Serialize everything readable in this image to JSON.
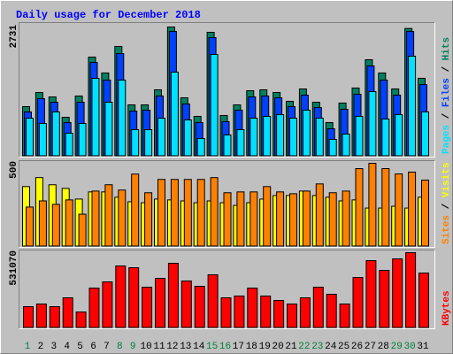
{
  "title": "Daily usage for December 2018",
  "days": [
    "1",
    "2",
    "3",
    "4",
    "5",
    "6",
    "7",
    "8",
    "9",
    "10",
    "11",
    "12",
    "13",
    "14",
    "15",
    "16",
    "17",
    "18",
    "19",
    "20",
    "21",
    "22",
    "23",
    "24",
    "25",
    "26",
    "27",
    "28",
    "29",
    "30",
    "31"
  ],
  "day_colors": [
    "#008040",
    "#000000",
    "#000000",
    "#000000",
    "#000000",
    "#000000",
    "#000000",
    "#008040",
    "#008040",
    "#000000",
    "#000000",
    "#000000",
    "#000000",
    "#000000",
    "#008040",
    "#008040",
    "#000000",
    "#000000",
    "#000000",
    "#000000",
    "#000000",
    "#008040",
    "#008040",
    "#000000",
    "#000000",
    "#000000",
    "#000000",
    "#000000",
    "#008040",
    "#008040",
    "#000000"
  ],
  "legend_separator": " / ",
  "chart_data": [
    {
      "type": "bar",
      "ylim": [
        0,
        2731
      ],
      "yticks": [
        2731
      ],
      "series": [
        {
          "name": "Hits",
          "color": "#008060",
          "values": [
            1048,
            1347,
            1253,
            823,
            1272,
            2095,
            1759,
            2320,
            1085,
            1085,
            1403,
            2731,
            1235,
            842,
            2619,
            861,
            1085,
            1384,
            1403,
            1347,
            1160,
            1422,
            1141,
            711,
            1123,
            1441,
            2039,
            1759,
            1422,
            2700,
            1647
          ]
        },
        {
          "name": "Files",
          "color": "#0040ff",
          "values": [
            936,
            1216,
            1141,
            711,
            1141,
            1983,
            1609,
            2170,
            954,
            973,
            1272,
            2638,
            1104,
            711,
            2507,
            730,
            973,
            1253,
            1272,
            1235,
            1048,
            1291,
            1029,
            580,
            992,
            1310,
            1908,
            1609,
            1291,
            2638,
            1515
          ]
        },
        {
          "name": "Pages",
          "color": "#00e0ff",
          "values": [
            804,
            692,
            936,
            486,
            692,
            1646,
            1141,
            1609,
            561,
            561,
            804,
            1777,
            767,
            374,
            2151,
            449,
            561,
            804,
            842,
            879,
            804,
            973,
            804,
            355,
            468,
            842,
            1366,
            786,
            879,
            2114,
            936
          ]
        }
      ]
    },
    {
      "type": "bar",
      "ylim": [
        0,
        500
      ],
      "yticks": [
        500
      ],
      "series": [
        {
          "name": "Visits",
          "color": "#ffff00",
          "values": [
            360,
            414,
            371,
            349,
            285,
            328,
            328,
            296,
            269,
            263,
            285,
            280,
            274,
            263,
            274,
            263,
            247,
            263,
            285,
            306,
            306,
            333,
            306,
            296,
            274,
            280,
            231,
            231,
            242,
            231,
            296
          ]
        },
        {
          "name": "Sites",
          "color": "#ff8000",
          "values": [
            237,
            274,
            253,
            280,
            194,
            333,
            371,
            339,
            435,
            323,
            403,
            403,
            403,
            403,
            414,
            323,
            328,
            328,
            360,
            328,
            317,
            333,
            376,
            323,
            333,
            468,
            500,
            468,
            436,
            447,
            399
          ]
        }
      ]
    },
    {
      "type": "bar",
      "ylim": [
        0,
        531070
      ],
      "yticks": [
        531070
      ],
      "series": [
        {
          "name": "KBytes",
          "color": "#ff0000",
          "values": [
            149952,
            168690,
            149952,
            212430,
            112460,
            281150,
            324900,
            437350,
            424860,
            287410,
            349890,
            456110,
            331150,
            293660,
            374880,
            212430,
            224930,
            281150,
            224930,
            193690,
            168690,
            212430,
            287410,
            237420,
            168690,
            356140,
            474850,
            406120,
            487340,
            531070,
            387380
          ]
        }
      ]
    }
  ]
}
